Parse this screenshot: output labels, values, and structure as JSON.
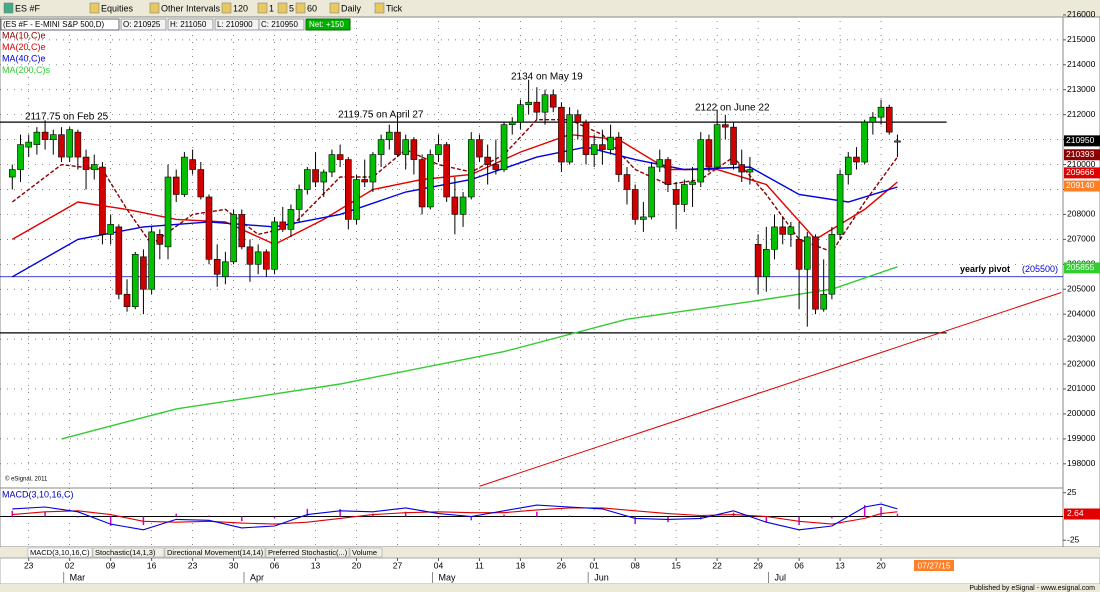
{
  "toolbar": {
    "items": [
      "ES #F",
      "Equities",
      "Other Intervals",
      "120",
      "1",
      "5",
      "60",
      "Daily",
      "Tick"
    ]
  },
  "info_bar": {
    "symbol": "(ES #F - E-MINI S&P 500,D)",
    "fields": [
      "O: 210925",
      "H: 211050",
      "L: 210900",
      "C: 210950"
    ],
    "net": "Net: +150"
  },
  "tabs": [
    "MACD(3,10,16,C)",
    "Stochastic(14,1,3)",
    "Directional Movement(14,14)",
    "Preferred Stochastic(...)",
    "Volume"
  ],
  "footer": "Published by eSignal - www.esignal.com",
  "copyright": "© eSignal, 2011",
  "chart_data": [
    {
      "type": "candlestick",
      "up_color": "#00c000",
      "down_color": "#d00000",
      "xlim": [
        -1.5,
        128.2
      ],
      "ylim": [
        197110,
        216037
      ],
      "yticks": [
        198000,
        199000,
        200000,
        201000,
        202000,
        203000,
        204000,
        205000,
        206000,
        207000,
        208000,
        209000,
        210000,
        211000,
        212000,
        213000,
        214000,
        215000,
        216000
      ],
      "xticks": [
        {
          "value": 2,
          "label": "23"
        },
        {
          "value": 7,
          "label": "02"
        },
        {
          "value": 12,
          "label": "09"
        },
        {
          "value": 17,
          "label": "16"
        },
        {
          "value": 22,
          "label": "23"
        },
        {
          "value": 27,
          "label": "30"
        },
        {
          "value": 32,
          "label": "06"
        },
        {
          "value": 37,
          "label": "13"
        },
        {
          "value": 42,
          "label": "20"
        },
        {
          "value": 47,
          "label": "27"
        },
        {
          "value": 52,
          "label": "04"
        },
        {
          "value": 57,
          "label": "11"
        },
        {
          "value": 62,
          "label": "18"
        },
        {
          "value": 67,
          "label": "26"
        },
        {
          "value": 71,
          "label": "01"
        },
        {
          "value": 76,
          "label": "08"
        },
        {
          "value": 81,
          "label": "15"
        },
        {
          "value": 86,
          "label": "22"
        },
        {
          "value": 91,
          "label": "29"
        },
        {
          "value": 96,
          "label": "06"
        },
        {
          "value": 101,
          "label": "13"
        },
        {
          "value": 106,
          "label": "20"
        }
      ],
      "months": [
        {
          "value": 7,
          "label": "Mar"
        },
        {
          "value": 29,
          "label": "Apr"
        },
        {
          "value": 52,
          "label": "May"
        },
        {
          "value": 71,
          "label": "Jun"
        },
        {
          "value": 93,
          "label": "Jul"
        }
      ],
      "date_tag": "07/27/15",
      "grid": true,
      "open": [
        209500,
        209800,
        210700,
        210800,
        211300,
        211000,
        211200,
        210300,
        211300,
        210300,
        209800,
        209900,
        207200,
        207500,
        204800,
        204300,
        206300,
        205000,
        207200,
        206700,
        209500,
        208800,
        210200,
        209800,
        208700,
        206200,
        205500,
        206100,
        208000,
        206700,
        206000,
        206500,
        205800,
        207700,
        207400,
        208200,
        209000,
        209800,
        209300,
        209700,
        210400,
        210200,
        207800,
        209400,
        209300,
        210400,
        211000,
        211300,
        210400,
        211000,
        210200,
        208300,
        210400,
        210800,
        208700,
        208000,
        208700,
        211000,
        210300,
        210000,
        209800,
        211600,
        211700,
        212400,
        212500,
        212100,
        212800,
        212300,
        210100,
        212000,
        211700,
        210400,
        210800,
        210600,
        211100,
        209600,
        209000,
        207800,
        207900,
        209900,
        210200,
        209000,
        208400,
        209200,
        209300,
        211000,
        209900,
        211600,
        211500,
        210000,
        209700,
        206800,
        205500,
        206600,
        207500,
        207200,
        207000,
        205800,
        207100,
        204200,
        204800,
        207200,
        209600,
        210300,
        210100,
        211700,
        211900,
        212300,
        210900
      ],
      "high": [
        210000,
        211200,
        211200,
        211500,
        211775,
        211400,
        211500,
        211500,
        211400,
        210600,
        210400,
        210100,
        208000,
        207600,
        205400,
        206500,
        206600,
        207500,
        207400,
        210000,
        209800,
        210500,
        210600,
        210100,
        208800,
        206800,
        206500,
        208200,
        208200,
        207000,
        206800,
        206600,
        207900,
        208300,
        208400,
        209200,
        209900,
        210500,
        209800,
        210600,
        210800,
        210300,
        209600,
        210200,
        210500,
        211200,
        211600,
        211975,
        211200,
        211100,
        210400,
        210600,
        211200,
        210900,
        209500,
        208900,
        211300,
        211200,
        210800,
        211000,
        211700,
        211900,
        212600,
        213400,
        213100,
        213000,
        213000,
        212500,
        212300,
        212200,
        211800,
        211200,
        211400,
        211600,
        211300,
        209900,
        209200,
        208500,
        210100,
        210600,
        210300,
        209300,
        209400,
        209900,
        211300,
        211200,
        212200,
        212000,
        211700,
        210600,
        210300,
        207200,
        207500,
        208000,
        207900,
        207700,
        207700,
        207300,
        207200,
        206200,
        207500,
        209800,
        210500,
        210700,
        211800,
        212100,
        212600,
        212400,
        211200
      ],
      "low": [
        209000,
        209300,
        210300,
        210400,
        210600,
        210400,
        210100,
        210100,
        209800,
        209000,
        209400,
        206800,
        206800,
        204600,
        204100,
        204200,
        204000,
        204800,
        206200,
        206200,
        208500,
        208700,
        209600,
        208600,
        206000,
        205100,
        205200,
        206000,
        206600,
        205300,
        205600,
        205500,
        205600,
        207300,
        207100,
        207700,
        208800,
        209100,
        208700,
        209500,
        209900,
        207400,
        207600,
        209100,
        208900,
        209900,
        210600,
        210300,
        209800,
        209600,
        208000,
        208200,
        210100,
        208500,
        207200,
        207500,
        208600,
        210100,
        209200,
        209600,
        209700,
        211200,
        211400,
        212000,
        211800,
        211600,
        212100,
        209700,
        210000,
        211000,
        210000,
        209900,
        210000,
        210400,
        209300,
        208400,
        207600,
        207300,
        207800,
        209700,
        208900,
        207400,
        208100,
        208300,
        209100,
        209700,
        209800,
        211000,
        209800,
        209300,
        209200,
        204800,
        204900,
        206200,
        206800,
        206700,
        204200,
        203500,
        204000,
        204100,
        204600,
        207000,
        209200,
        209800,
        210000,
        211200,
        211600,
        211200,
        210300
      ],
      "close": [
        209800,
        210800,
        210900,
        211300,
        211000,
        211200,
        210300,
        211400,
        210300,
        209800,
        210000,
        207200,
        207600,
        204800,
        204300,
        206400,
        205000,
        207300,
        206800,
        209500,
        208800,
        210300,
        209800,
        208700,
        206200,
        205600,
        206100,
        208000,
        206700,
        206000,
        206500,
        205800,
        207700,
        207400,
        208200,
        209000,
        209800,
        209300,
        209700,
        210400,
        210200,
        207800,
        209400,
        209300,
        210400,
        211000,
        211300,
        210400,
        211000,
        210200,
        208300,
        210400,
        210800,
        208700,
        208000,
        208700,
        211000,
        210300,
        210000,
        209800,
        211600,
        211700,
        212400,
        212500,
        212100,
        212800,
        212300,
        210100,
        212000,
        211700,
        210400,
        210800,
        210600,
        211100,
        209600,
        209000,
        207800,
        207900,
        209900,
        210200,
        209200,
        208400,
        209200,
        209300,
        211000,
        209900,
        211600,
        211500,
        210000,
        209700,
        209800,
        205500,
        206600,
        207500,
        207200,
        207500,
        205800,
        207100,
        204200,
        204800,
        207200,
        209600,
        210300,
        210100,
        211700,
        211900,
        212300,
        211300,
        210950
      ],
      "lines": [
        {
          "name": "MA(10,C)e",
          "color": "#8b0000",
          "dashed": true,
          "x": [
            0,
            6,
            11,
            14,
            17,
            22,
            26,
            30,
            34,
            40,
            44,
            48,
            52,
            56,
            60,
            64,
            68,
            72,
            76,
            80,
            84,
            88,
            92,
            96,
            100,
            104,
            108
          ],
          "values": [
            208500,
            210000,
            209800,
            208200,
            206800,
            208000,
            208200,
            207200,
            207500,
            209500,
            209500,
            210600,
            210000,
            209700,
            210400,
            211800,
            211800,
            211200,
            209800,
            209200,
            209400,
            210300,
            208800,
            207000,
            206500,
            208500,
            210300
          ]
        },
        {
          "name": "MA(20,C)e",
          "color": "#e00000",
          "dashed": false,
          "x": [
            0,
            8,
            14,
            20,
            26,
            32,
            38,
            44,
            50,
            56,
            62,
            68,
            74,
            80,
            86,
            92,
            98,
            104,
            108
          ],
          "values": [
            207000,
            208500,
            208200,
            207800,
            207700,
            206800,
            207800,
            209000,
            209400,
            209600,
            210500,
            211200,
            211000,
            209800,
            209800,
            209200,
            207000,
            208200,
            209300
          ]
        },
        {
          "name": "MA(40,C)e",
          "color": "#0000e0",
          "dashed": false,
          "x": [
            0,
            8,
            16,
            24,
            32,
            40,
            48,
            56,
            64,
            70,
            76,
            82,
            90,
            96,
            102,
            108
          ],
          "values": [
            205500,
            207000,
            207500,
            207700,
            207500,
            208000,
            208900,
            209400,
            210300,
            210700,
            210200,
            209800,
            209900,
            208800,
            208500,
            209100
          ]
        },
        {
          "name": "MA(200,C)s",
          "color": "#33cc33",
          "dashed": false,
          "x": [
            6,
            20,
            40,
            60,
            75,
            90,
            100,
            108
          ],
          "values": [
            199000,
            200200,
            201200,
            202500,
            203800,
            204500,
            205000,
            205900
          ]
        }
      ],
      "price_tags": [
        {
          "value": 210950,
          "color": "#000000"
        },
        {
          "value": 210393,
          "color": "#8b0000"
        },
        {
          "value": 209666,
          "color": "#e00000"
        },
        {
          "value": 209140,
          "color": "#ff7f27"
        },
        {
          "value": 205855,
          "color": "#33cc33"
        }
      ],
      "levels": [
        {
          "value": 211700,
          "x": [
            -1.5,
            114
          ]
        },
        {
          "value": 203250,
          "x": [
            -1.5,
            114
          ]
        }
      ],
      "pivot": {
        "label": "yearly pivot",
        "value": 205500,
        "value_label": "(205500)",
        "color": "#0000cc"
      },
      "trendline": {
        "color": "#e00000",
        "x": [
          57,
          128
        ],
        "values": [
          197100,
          204870
        ]
      },
      "annotations": [
        "2117.75 on Feb 25",
        "2119.75 on April 27",
        "2134 on May 19",
        "2122 on June 22"
      ]
    },
    {
      "type": "macd",
      "title": "MACD(3,10,16,C)",
      "ylim": [
        -30,
        30
      ],
      "yticks": [
        25,
        -25
      ],
      "last_value": 2.64,
      "x": [
        0,
        4,
        8,
        12,
        16,
        20,
        24,
        28,
        32,
        36,
        40,
        44,
        48,
        52,
        56,
        60,
        64,
        68,
        72,
        76,
        80,
        84,
        88,
        92,
        96,
        100,
        104,
        106,
        108
      ],
      "macd": {
        "color": "#0000e0",
        "values": [
          8,
          10,
          5,
          -8,
          -14,
          -3,
          -4,
          -12,
          -10,
          2,
          6,
          5,
          9,
          3,
          0,
          6,
          12,
          10,
          8,
          -2,
          -3,
          -2,
          6,
          -6,
          -14,
          -10,
          10,
          13,
          8
        ]
      },
      "signal": {
        "color": "#e00000",
        "values": [
          2,
          5,
          6,
          2,
          -5,
          -6,
          -5,
          -7,
          -8,
          -6,
          -2,
          2,
          4,
          5,
          4,
          4,
          7,
          9,
          9,
          6,
          3,
          1,
          2,
          0,
          -5,
          -8,
          -2,
          3,
          5
        ]
      },
      "histogram": {
        "color": "#cc00cc",
        "values": [
          6,
          5,
          -1,
          -10,
          -9,
          3,
          1,
          -5,
          -2,
          8,
          8,
          3,
          5,
          -2,
          -4,
          2,
          5,
          1,
          -1,
          -8,
          -6,
          -3,
          4,
          -6,
          -9,
          -2,
          12,
          10,
          3
        ]
      }
    }
  ]
}
